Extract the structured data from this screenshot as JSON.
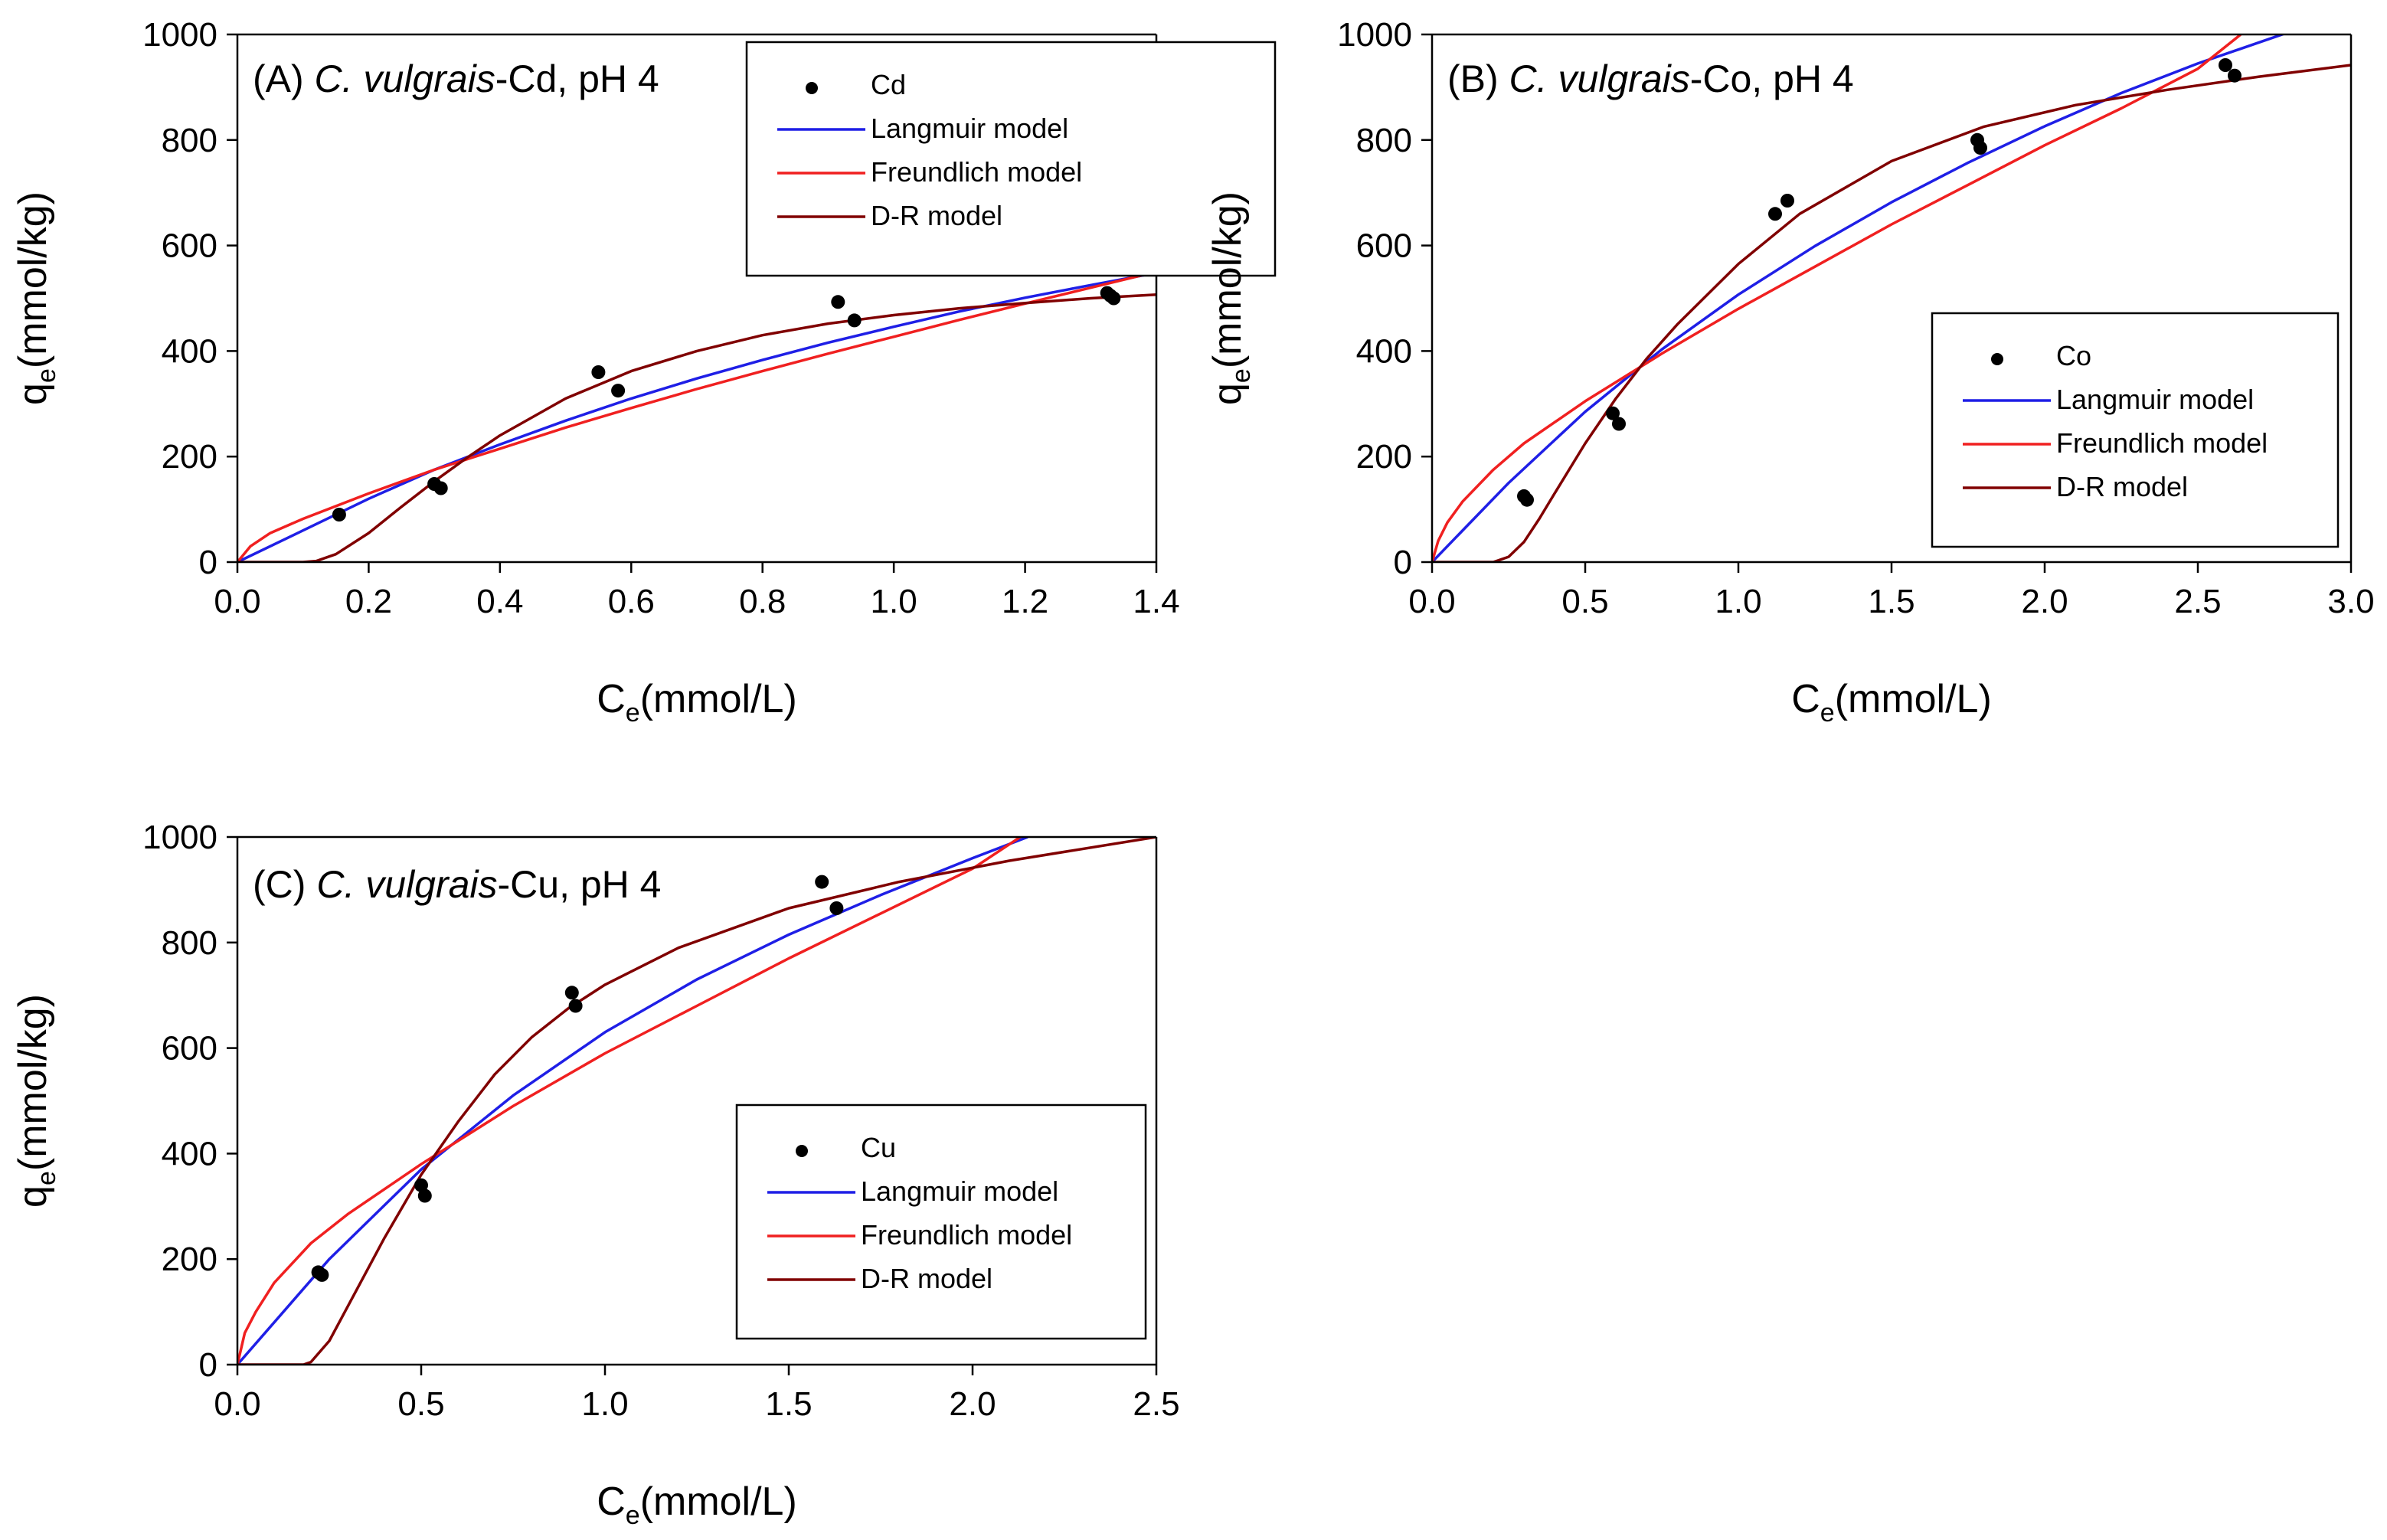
{
  "chart_data": [
    {
      "type": "scatter",
      "panel": "A",
      "title": {
        "prefix": "(A) ",
        "italic": "C. vulgrais",
        "suffix": "-Cd, pH 4"
      },
      "xlabel": {
        "base": "C",
        "sub": "e",
        "rest": "(mmol/L)"
      },
      "ylabel": {
        "base": "q",
        "sub": "e",
        "rest": "(mmol/kg)"
      },
      "xlim": [
        0,
        1.4
      ],
      "ylim": [
        0,
        1000
      ],
      "xticks": [
        "0.0",
        "0.2",
        "0.4",
        "0.6",
        "0.8",
        "1.0",
        "1.2",
        "1.4"
      ],
      "yticks": [
        "0",
        "200",
        "400",
        "600",
        "800",
        "1000"
      ],
      "legend_position": "top-right",
      "legend": [
        "Cd",
        "Langmuir model",
        "Freundlich model",
        "D-R model"
      ],
      "points": {
        "x": [
          0.155,
          0.3,
          0.31,
          0.55,
          0.58,
          0.915,
          0.94,
          1.325,
          1.33,
          1.335
        ],
        "y": [
          90,
          148,
          140,
          360,
          325,
          493,
          458,
          510,
          505,
          500
        ]
      },
      "series": [
        {
          "name": "Langmuir model",
          "x": [
            0,
            0.1,
            0.2,
            0.3,
            0.4,
            0.5,
            0.6,
            0.7,
            0.8,
            0.9,
            1.0,
            1.1,
            1.2,
            1.3,
            1.4
          ],
          "y": [
            0,
            60,
            120,
            175,
            223,
            268,
            310,
            348,
            383,
            416,
            446,
            475,
            501,
            525,
            548
          ]
        },
        {
          "name": "Freundlich model",
          "x": [
            0,
            0.02,
            0.05,
            0.1,
            0.2,
            0.3,
            0.4,
            0.5,
            0.6,
            0.7,
            0.8,
            0.9,
            1.0,
            1.1,
            1.2,
            1.3,
            1.4
          ],
          "y": [
            0,
            30,
            55,
            82,
            130,
            175,
            215,
            255,
            292,
            328,
            362,
            395,
            427,
            459,
            490,
            520,
            550
          ]
        },
        {
          "name": "D-R model",
          "x": [
            0,
            0.1,
            0.12,
            0.15,
            0.2,
            0.25,
            0.3,
            0.35,
            0.4,
            0.5,
            0.6,
            0.7,
            0.8,
            0.9,
            1.0,
            1.1,
            1.2,
            1.3,
            1.4
          ],
          "y": [
            0,
            0,
            2,
            15,
            55,
            105,
            153,
            198,
            240,
            310,
            362,
            400,
            430,
            452,
            468,
            481,
            491,
            500,
            507
          ]
        }
      ]
    },
    {
      "type": "scatter",
      "panel": "B",
      "title": {
        "prefix": "(B) ",
        "italic": "C. vulgrais",
        "suffix": "-Co, pH 4"
      },
      "xlabel": {
        "base": "C",
        "sub": "e",
        "rest": "(mmol/L)"
      },
      "ylabel": {
        "base": "q",
        "sub": "e",
        "rest": "(mmol/kg)"
      },
      "xlim": [
        0,
        3.0
      ],
      "ylim": [
        0,
        1000
      ],
      "xticks": [
        "0.0",
        "0.5",
        "1.0",
        "1.5",
        "2.0",
        "2.5",
        "3.0"
      ],
      "yticks": [
        "0",
        "200",
        "400",
        "600",
        "800",
        "1000"
      ],
      "legend_position": "center-right",
      "legend": [
        "Co",
        "Langmuir model",
        "Freundlich model",
        "D-R model"
      ],
      "points": {
        "x": [
          0.3,
          0.31,
          0.59,
          0.61,
          1.12,
          1.16,
          1.78,
          1.79,
          2.59,
          2.62
        ],
        "y": [
          125,
          118,
          282,
          262,
          660,
          685,
          800,
          785,
          942,
          922
        ]
      },
      "series": [
        {
          "name": "Langmuir model",
          "x": [
            0,
            0.25,
            0.5,
            0.75,
            1.0,
            1.25,
            1.5,
            1.75,
            2.0,
            2.25,
            2.5,
            2.8
          ],
          "y": [
            0,
            150,
            285,
            403,
            507,
            599,
            682,
            757,
            826,
            889,
            945,
            1005
          ]
        },
        {
          "name": "Freundlich model",
          "x": [
            0,
            0.02,
            0.05,
            0.1,
            0.2,
            0.3,
            0.5,
            0.75,
            1.0,
            1.25,
            1.5,
            1.75,
            2.0,
            2.25,
            2.5,
            2.64
          ],
          "y": [
            0,
            40,
            75,
            115,
            175,
            225,
            305,
            395,
            480,
            560,
            640,
            715,
            790,
            860,
            935,
            1000
          ]
        },
        {
          "name": "D-R model",
          "x": [
            0,
            0.2,
            0.25,
            0.3,
            0.35,
            0.4,
            0.5,
            0.6,
            0.7,
            0.8,
            1.0,
            1.2,
            1.5,
            1.8,
            2.1,
            2.4,
            2.7,
            3.0
          ],
          "y": [
            0,
            0,
            10,
            38,
            82,
            130,
            225,
            310,
            385,
            450,
            565,
            660,
            760,
            825,
            866,
            895,
            920,
            942
          ]
        }
      ]
    },
    {
      "type": "scatter",
      "panel": "C",
      "title": {
        "prefix": "(C) ",
        "italic": "C. vulgrais",
        "suffix": "-Cu, pH 4"
      },
      "xlabel": {
        "base": "C",
        "sub": "e",
        "rest": "(mmol/L)"
      },
      "ylabel": {
        "base": "q",
        "sub": "e",
        "rest": "(mmol/kg)"
      },
      "xlim": [
        0,
        2.5
      ],
      "ylim": [
        0,
        1000
      ],
      "xticks": [
        "0.0",
        "0.5",
        "1.0",
        "1.5",
        "2.0",
        "2.5"
      ],
      "yticks": [
        "0",
        "200",
        "400",
        "600",
        "800",
        "1000"
      ],
      "legend_position": "center-right",
      "legend": [
        "Cu",
        "Langmuir model",
        "Freundlich model",
        "D-R model"
      ],
      "points": {
        "x": [
          0.22,
          0.23,
          0.5,
          0.51,
          0.91,
          0.92,
          1.59,
          1.63
        ],
        "y": [
          175,
          170,
          340,
          320,
          705,
          680,
          915,
          865
        ]
      },
      "series": [
        {
          "name": "Langmuir model",
          "x": [
            0,
            0.25,
            0.5,
            0.75,
            1.0,
            1.25,
            1.5,
            1.75,
            2.0,
            2.15
          ],
          "y": [
            0,
            200,
            370,
            510,
            630,
            730,
            815,
            890,
            960,
            1000
          ]
        },
        {
          "name": "Freundlich model",
          "x": [
            0,
            0.02,
            0.05,
            0.1,
            0.2,
            0.3,
            0.5,
            0.75,
            1.0,
            1.25,
            1.5,
            1.75,
            2.0,
            2.13
          ],
          "y": [
            0,
            60,
            100,
            155,
            230,
            285,
            380,
            490,
            590,
            680,
            770,
            855,
            940,
            1000
          ]
        },
        {
          "name": "D-R model",
          "x": [
            0,
            0.18,
            0.2,
            0.25,
            0.3,
            0.4,
            0.5,
            0.6,
            0.7,
            0.8,
            0.9,
            1.0,
            1.2,
            1.5,
            1.8,
            2.1,
            2.5
          ],
          "y": [
            0,
            0,
            5,
            45,
            110,
            240,
            360,
            460,
            550,
            620,
            675,
            720,
            790,
            865,
            915,
            955,
            1000
          ]
        }
      ]
    }
  ],
  "colors": {
    "langmuir": "#1f1fe6",
    "freundlich": "#f02020",
    "dr": "#800000",
    "points": "#000000",
    "axis": "#000000"
  }
}
